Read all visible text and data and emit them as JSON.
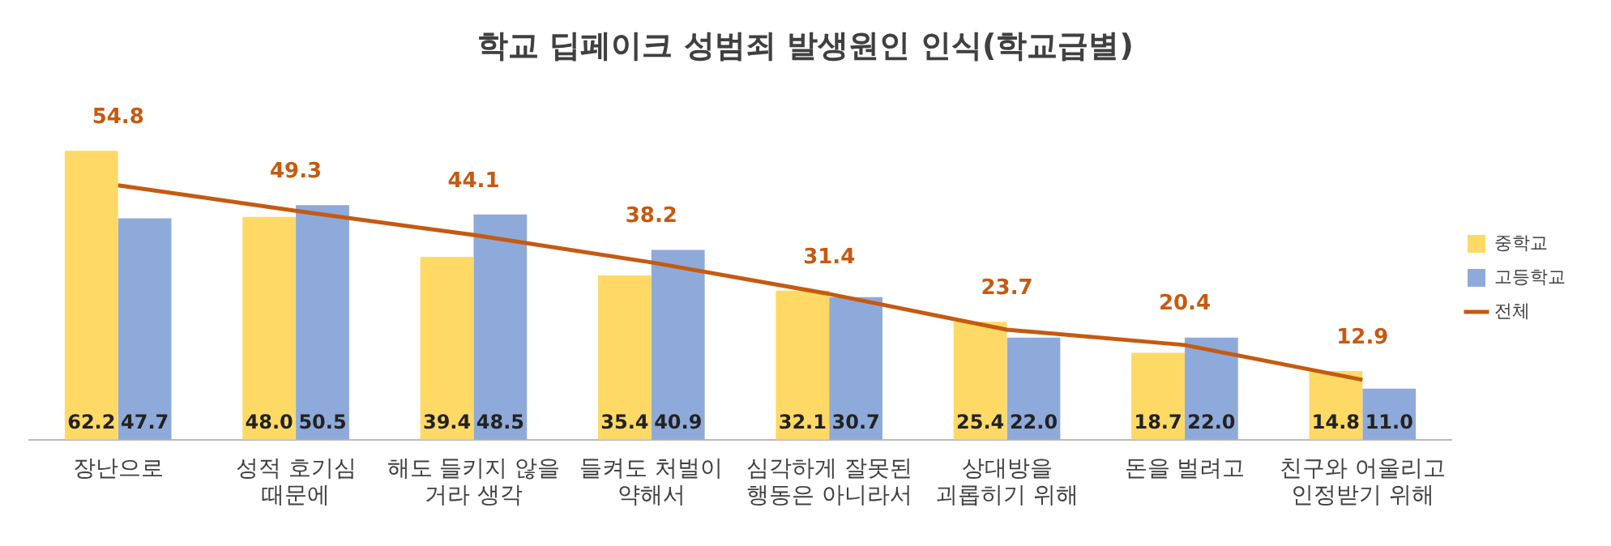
{
  "chart_data": {
    "type": "bar",
    "title": "학교 딥페이크 성범죄 발생원인 인식(학교급별)",
    "categories": [
      "장난으로",
      "성적 호기심\n때문에",
      "해도 들키지 않을\n거라 생각",
      "들켜도 처벌이\n약해서",
      "심각하게 잘못된\n행동은 아니라서",
      "상대방을\n괴롭히기 위해",
      "돈을 벌려고",
      "친구와 어울리고\n인정받기 위해"
    ],
    "series": [
      {
        "name": "중학교",
        "color": "#ffd966",
        "values": [
          62.2,
          48.0,
          39.4,
          35.4,
          32.1,
          25.4,
          18.7,
          14.8
        ],
        "value_labels": [
          "62.2",
          "48.0",
          "39.4",
          "35.4",
          "32.1",
          "25.4",
          "18.7",
          "14.8"
        ]
      },
      {
        "name": "고등학교",
        "color": "#8eaadb",
        "values": [
          47.7,
          50.5,
          48.5,
          40.9,
          30.7,
          22.0,
          22.0,
          11.0
        ],
        "value_labels": [
          "47.7",
          "50.5",
          "48.5",
          "40.9",
          "30.7",
          "22.0",
          "22.0",
          "11.0"
        ]
      },
      {
        "name": "전체",
        "type": "line",
        "color": "#c55a11",
        "values": [
          54.8,
          49.3,
          44.1,
          38.2,
          31.4,
          23.7,
          20.4,
          12.9
        ],
        "value_labels": [
          "54.8",
          "49.3",
          "44.1",
          "38.2",
          "31.4",
          "23.7",
          "20.4",
          "12.9"
        ]
      }
    ],
    "grid": false,
    "legend": "right",
    "marker": "none"
  }
}
